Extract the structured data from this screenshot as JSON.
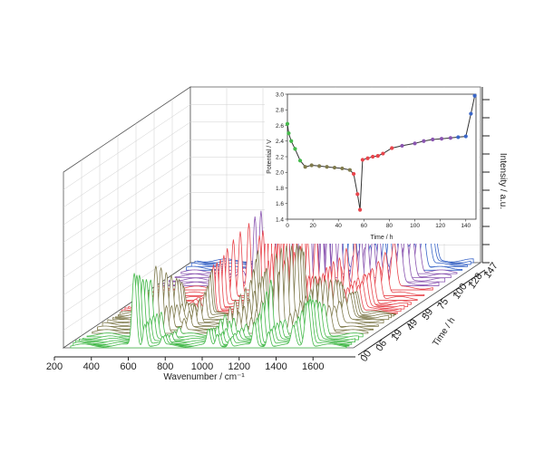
{
  "chart_data": [
    {
      "type": "line",
      "xlabel": "Wavenumber / cm⁻¹",
      "ylabel": "Intensity / a.u.",
      "zlabel": "Time / h",
      "x_ticks": [
        200,
        400,
        600,
        800,
        1000,
        1200,
        1400,
        1600
      ],
      "x_tick_labels": [
        "200",
        "400",
        "600",
        "800",
        "1000",
        "1200",
        "1400",
        "1600"
      ],
      "xlim": [
        200,
        1800
      ],
      "time_ticks": [
        "00",
        "06",
        "19",
        "49",
        "59",
        "75",
        "100",
        "128",
        "147"
      ],
      "series_times": [
        0,
        3,
        6,
        10,
        14,
        19,
        25,
        31,
        37,
        43,
        49,
        52,
        55,
        57,
        59,
        63,
        67,
        71,
        75,
        82,
        90,
        100,
        107,
        114,
        121,
        128,
        134,
        140,
        144,
        147
      ],
      "series_groups": [
        {
          "color": "#44b94a",
          "from_index": 0,
          "to_index": 5
        },
        {
          "color": "#7f7a4c",
          "from_index": 6,
          "to_index": 13
        },
        {
          "color": "#e8454c",
          "from_index": 14,
          "to_index": 21
        },
        {
          "color": "#8a55b0",
          "from_index": 22,
          "to_index": 25
        },
        {
          "color": "#3a66c8",
          "from_index": 26,
          "to_index": 29
        }
      ],
      "peaks": [
        {
          "position": 580,
          "width": 12,
          "amplitudes": [
            0.95,
            0.92,
            0.9,
            0.8,
            0.75,
            0.7,
            0.85,
            0.8,
            0.7,
            0.6,
            0.5,
            0.45,
            0.4,
            0.35,
            0.1,
            0.08,
            0.06,
            0.05,
            0.05,
            0.05,
            0.05,
            0.04,
            0.04,
            0.04,
            0.04,
            0.04,
            0.04,
            0.04,
            0.04,
            0.04
          ]
        },
        {
          "position": 640,
          "width": 10,
          "amplitudes": [
            0.3,
            0.3,
            0.3,
            0.3,
            0.3,
            0.3,
            0.35,
            0.3,
            0.25,
            0.2,
            0.18,
            0.16,
            0.15,
            0.14,
            0.1,
            0.1,
            0.1,
            0.1,
            0.1,
            0.1,
            0.1,
            0.1,
            0.1,
            0.1,
            0.1,
            0.1,
            0.1,
            0.1,
            0.1,
            0.1
          ]
        },
        {
          "position": 740,
          "width": 9,
          "amplitudes": [
            0.1,
            0.1,
            0.1,
            0.1,
            0.1,
            0.1,
            0.15,
            0.2,
            0.25,
            0.3,
            0.35,
            0.4,
            0.5,
            0.55,
            0.6,
            0.62,
            0.64,
            0.66,
            0.7,
            0.75,
            0.8,
            0.85,
            0.9,
            0.92,
            0.94,
            0.96,
            0.95,
            0.9,
            0.88,
            0.85
          ]
        },
        {
          "position": 1000,
          "width": 10,
          "amplitudes": [
            0.2,
            0.2,
            0.2,
            0.2,
            0.25,
            0.25,
            0.3,
            0.35,
            0.4,
            0.45,
            0.5,
            0.6,
            0.7,
            0.8,
            1.0,
            1.05,
            1.1,
            1.15,
            1.2,
            1.3,
            1.35,
            1.4,
            1.45,
            1.5,
            1.5,
            1.5,
            1.45,
            1.4,
            1.35,
            1.3
          ]
        },
        {
          "position": 1050,
          "width": 9,
          "amplitudes": [
            0.15,
            0.15,
            0.15,
            0.15,
            0.2,
            0.2,
            0.25,
            0.3,
            0.35,
            0.4,
            0.45,
            0.5,
            0.55,
            0.6,
            0.7,
            0.75,
            0.8,
            0.85,
            0.9,
            0.95,
            1.0,
            1.05,
            1.1,
            1.15,
            1.15,
            1.1,
            1.05,
            1.0,
            0.95,
            0.9
          ]
        },
        {
          "position": 1120,
          "width": 9,
          "amplitudes": [
            0.1,
            0.1,
            0.1,
            0.1,
            0.12,
            0.15,
            0.2,
            0.25,
            0.3,
            0.35,
            0.4,
            0.45,
            0.5,
            0.55,
            0.6,
            0.62,
            0.64,
            0.66,
            0.68,
            0.7,
            0.72,
            0.74,
            0.76,
            0.78,
            0.78,
            0.76,
            0.74,
            0.72,
            0.7,
            0.68
          ]
        },
        {
          "position": 1260,
          "width": 10,
          "amplitudes": [
            0.3,
            0.35,
            0.4,
            0.5,
            0.6,
            0.7,
            1.0,
            1.05,
            1.05,
            1.0,
            0.95,
            0.9,
            0.85,
            0.8,
            0.5,
            0.45,
            0.4,
            0.35,
            0.3,
            0.3,
            0.3,
            0.3,
            0.3,
            0.3,
            0.3,
            0.3,
            0.3,
            0.3,
            0.3,
            0.3
          ]
        },
        {
          "position": 1340,
          "width": 10,
          "amplitudes": [
            0.2,
            0.2,
            0.2,
            0.2,
            0.2,
            0.2,
            0.25,
            0.25,
            0.3,
            0.3,
            0.35,
            0.35,
            0.4,
            0.4,
            0.45,
            0.45,
            0.5,
            0.5,
            0.55,
            0.55,
            0.6,
            0.6,
            0.6,
            0.6,
            0.55,
            0.5,
            0.45,
            0.45,
            0.4,
            0.4
          ]
        },
        {
          "position": 1480,
          "width": 12,
          "amplitudes": [
            0.25,
            0.3,
            0.35,
            0.4,
            0.45,
            0.5,
            0.7,
            0.65,
            0.6,
            0.55,
            0.5,
            0.45,
            0.4,
            0.35,
            0.3,
            0.3,
            0.3,
            0.3,
            0.3,
            0.3,
            0.3,
            0.3,
            0.3,
            0.3,
            0.3,
            0.3,
            0.3,
            0.3,
            0.3,
            0.3
          ]
        },
        {
          "position": 1560,
          "width": 14,
          "amplitudes": [
            0.6,
            0.6,
            0.55,
            0.5,
            0.45,
            0.4,
            0.35,
            0.3,
            0.3,
            0.3,
            0.3,
            0.3,
            0.3,
            0.3,
            0.35,
            0.35,
            0.4,
            0.4,
            0.45,
            0.5,
            0.55,
            0.6,
            0.6,
            0.6,
            0.55,
            0.5,
            0.5,
            0.45,
            0.45,
            0.4
          ]
        }
      ]
    },
    {
      "type": "line",
      "xlabel": "Time / h",
      "ylabel": "Potential / V",
      "xlim": [
        0,
        148
      ],
      "ylim": [
        1.4,
        3.0
      ],
      "x_ticks": [
        0,
        20,
        40,
        60,
        80,
        100,
        120,
        140
      ],
      "y_ticks": [
        1.4,
        1.6,
        1.8,
        2.0,
        2.2,
        2.4,
        2.6,
        2.8,
        3.0
      ],
      "y_tick_labels": [
        "1.4",
        "1.6",
        "1.8",
        "2.0",
        "2.2",
        "2.4",
        "2.6",
        "2.8",
        "3.0"
      ],
      "x": [
        0,
        1,
        3,
        6,
        10,
        14,
        19,
        25,
        31,
        37,
        43,
        49,
        52,
        55,
        57,
        59,
        63,
        67,
        71,
        75,
        82,
        90,
        100,
        107,
        114,
        121,
        128,
        134,
        140,
        144,
        147
      ],
      "y": [
        2.62,
        2.5,
        2.4,
        2.3,
        2.15,
        2.07,
        2.09,
        2.08,
        2.07,
        2.06,
        2.05,
        2.03,
        1.98,
        1.72,
        1.52,
        2.16,
        2.18,
        2.2,
        2.21,
        2.24,
        2.31,
        2.34,
        2.37,
        2.4,
        2.42,
        2.43,
        2.44,
        2.45,
        2.46,
        2.75,
        2.98
      ],
      "marker_colors": [
        "#44b94a",
        "#44b94a",
        "#44b94a",
        "#44b94a",
        "#44b94a",
        "#7f7a4c",
        "#7f7a4c",
        "#7f7a4c",
        "#7f7a4c",
        "#7f7a4c",
        "#7f7a4c",
        "#7f7a4c",
        "#e8454c",
        "#e8454c",
        "#e8454c",
        "#e8454c",
        "#e8454c",
        "#e8454c",
        "#e8454c",
        "#e8454c",
        "#e8454c",
        "#8a55b0",
        "#8a55b0",
        "#8a55b0",
        "#8a55b0",
        "#8a55b0",
        "#8a55b0",
        "#3a66c8",
        "#3a66c8",
        "#3a66c8",
        "#3a66c8"
      ],
      "line_color": "#333333"
    }
  ]
}
